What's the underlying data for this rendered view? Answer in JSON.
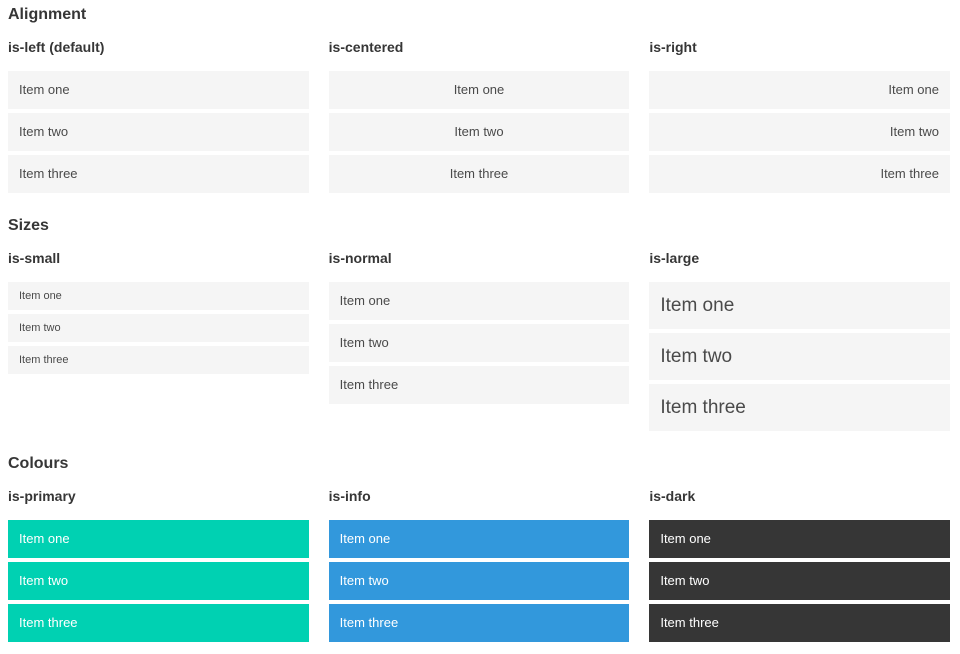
{
  "sections": [
    {
      "title": "Alignment",
      "columns": [
        {
          "label": "is-left (default)",
          "items": [
            "Item one",
            "Item two",
            "Item three"
          ]
        },
        {
          "label": "is-centered",
          "items": [
            "Item one",
            "Item two",
            "Item three"
          ]
        },
        {
          "label": "is-right",
          "items": [
            "Item one",
            "Item two",
            "Item three"
          ]
        }
      ]
    },
    {
      "title": "Sizes",
      "columns": [
        {
          "label": "is-small",
          "items": [
            "Item one",
            "Item two",
            "Item three"
          ]
        },
        {
          "label": "is-normal",
          "items": [
            "Item one",
            "Item two",
            "Item three"
          ]
        },
        {
          "label": "is-large",
          "items": [
            "Item one",
            "Item two",
            "Item three"
          ]
        }
      ]
    },
    {
      "title": "Colours",
      "columns": [
        {
          "label": "is-primary",
          "items": [
            "Item one",
            "Item two",
            "Item three"
          ]
        },
        {
          "label": "is-info",
          "items": [
            "Item one",
            "Item two",
            "Item three"
          ]
        },
        {
          "label": "is-dark",
          "items": [
            "Item one",
            "Item two",
            "Item three"
          ]
        }
      ]
    }
  ],
  "colors": {
    "primary": "#00d1b2",
    "info": "#3298dc",
    "dark": "#363636",
    "item_background": "#f5f5f5",
    "item_text": "#4a4a4a",
    "heading_text": "#363636",
    "colored_item_text": "#ffffff"
  }
}
